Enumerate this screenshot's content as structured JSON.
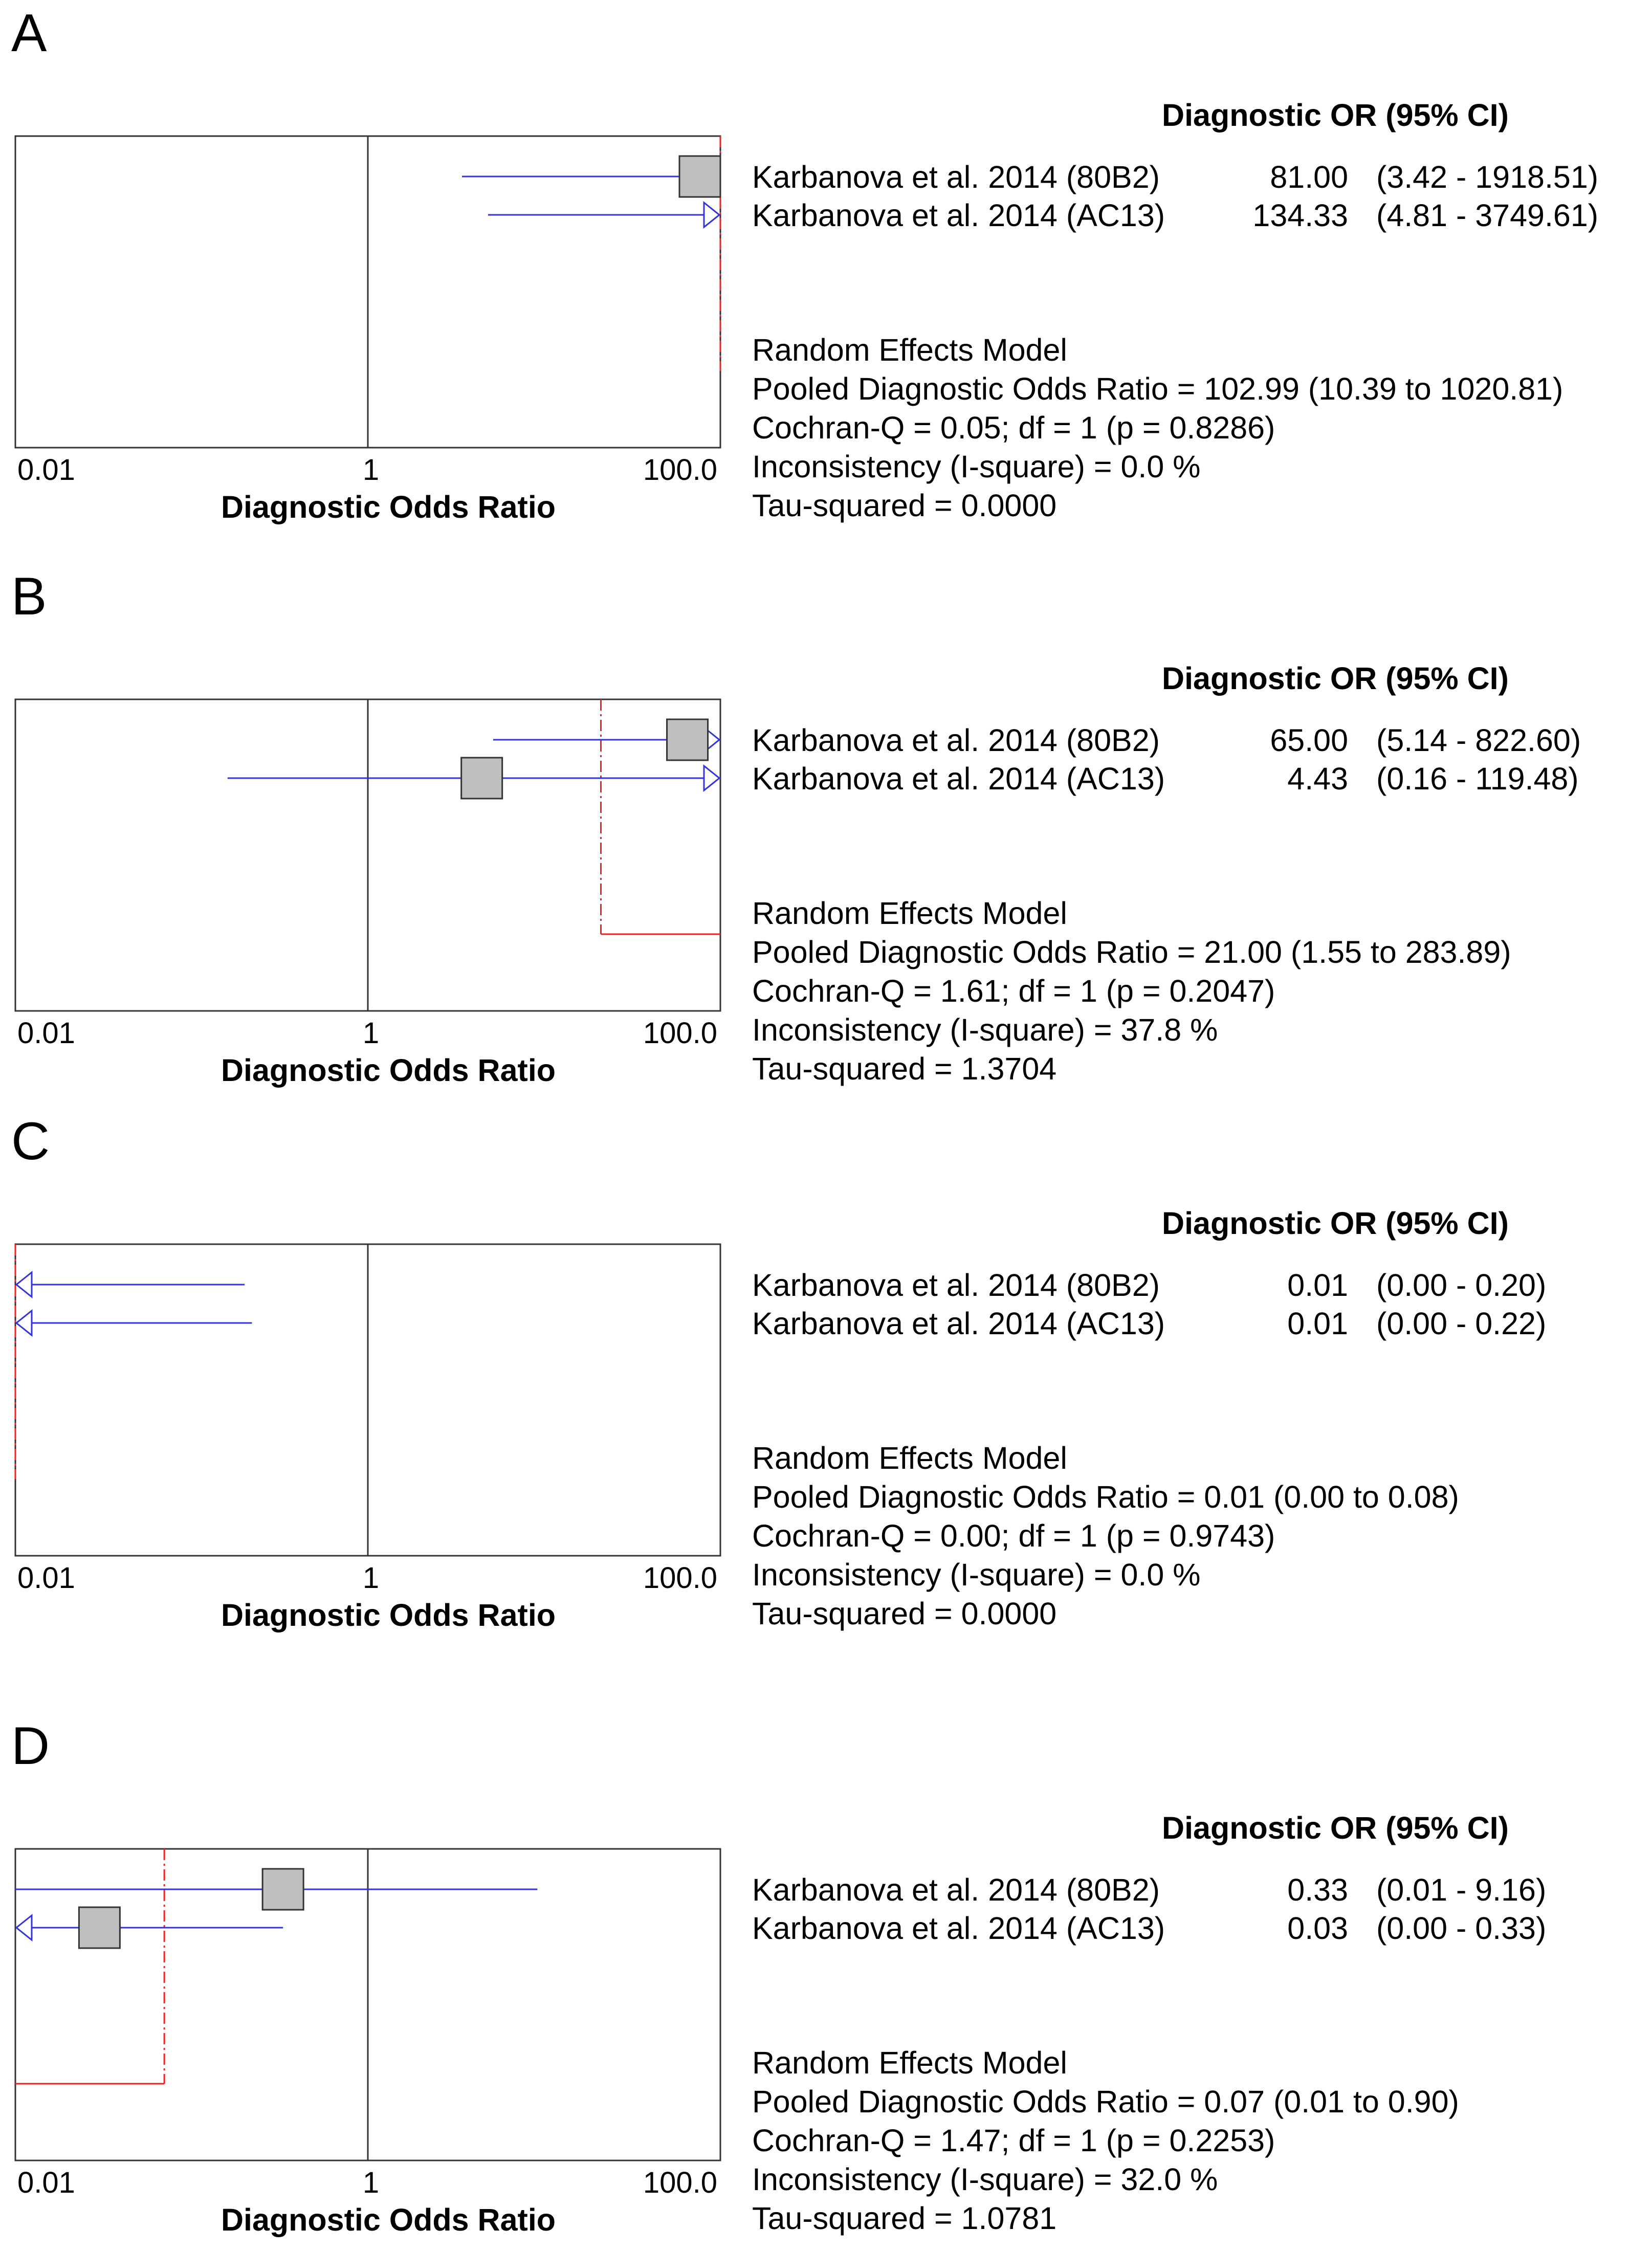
{
  "chart_data": [
    {
      "type": "forest",
      "panel_label": "A",
      "or_header": "Diagnostic OR (95% CI)",
      "xlabel": "Diagnostic Odds Ratio",
      "x_scale": "log",
      "xlim": [
        0.01,
        100.0
      ],
      "tick_labels": [
        "0.01",
        "1",
        "100.0"
      ],
      "tick_values": [
        0.01,
        1,
        100
      ],
      "studies": [
        {
          "name": "Karbanova et al. 2014 (80B2)",
          "or": 81.0,
          "ci_low": 3.42,
          "ci_high": 1918.51,
          "or_text": "81.00",
          "ci_text": "(3.42 - 1918.51)"
        },
        {
          "name": "Karbanova et al. 2014 (AC13)",
          "or": 134.33,
          "ci_low": 4.81,
          "ci_high": 3749.61,
          "or_text": "134.33",
          "ci_text": "(4.81 - 3749.61)"
        }
      ],
      "pooled_or": 102.99,
      "model": {
        "title": "Random Effects Model",
        "pooled": "Pooled Diagnostic Odds Ratio = 102.99 (10.39 to 1020.81)",
        "cochran": "Cochran-Q = 0.05; df =  1 (p = 0.8286)",
        "inconsistency": "Inconsistency (I-square) = 0.0 %",
        "tau": "Tau-squared = 0.0000"
      }
    },
    {
      "type": "forest",
      "panel_label": "B",
      "or_header": "Diagnostic OR (95% CI)",
      "xlabel": "Diagnostic Odds Ratio",
      "x_scale": "log",
      "xlim": [
        0.01,
        100.0
      ],
      "tick_labels": [
        "0.01",
        "1",
        "100.0"
      ],
      "tick_values": [
        0.01,
        1,
        100
      ],
      "studies": [
        {
          "name": "Karbanova et al. 2014 (80B2)",
          "or": 65.0,
          "ci_low": 5.14,
          "ci_high": 822.6,
          "or_text": "65.00",
          "ci_text": "(5.14 - 822.60)"
        },
        {
          "name": "Karbanova et al. 2014 (AC13)",
          "or": 4.43,
          "ci_low": 0.16,
          "ci_high": 119.48,
          "or_text": "4.43",
          "ci_text": "(0.16 - 119.48)"
        }
      ],
      "pooled_or": 21.0,
      "model": {
        "title": "Random Effects Model",
        "pooled": "Pooled Diagnostic Odds Ratio = 21.00 (1.55 to 283.89)",
        "cochran": "Cochran-Q = 1.61; df =  1 (p = 0.2047)",
        "inconsistency": "Inconsistency (I-square) = 37.8 %",
        "tau": "Tau-squared = 1.3704"
      }
    },
    {
      "type": "forest",
      "panel_label": "C",
      "or_header": "Diagnostic OR (95% CI)",
      "xlabel": "Diagnostic Odds Ratio",
      "x_scale": "log",
      "xlim": [
        0.01,
        100.0
      ],
      "tick_labels": [
        "0.01",
        "1",
        "100.0"
      ],
      "tick_values": [
        0.01,
        1,
        100
      ],
      "studies": [
        {
          "name": "Karbanova et al. 2014 (80B2)",
          "or": 0.01,
          "ci_low": 0.0,
          "ci_high": 0.2,
          "or_text": "0.01",
          "ci_text": "(0.00 - 0.20)"
        },
        {
          "name": "Karbanova et al. 2014 (AC13)",
          "or": 0.01,
          "ci_low": 0.0,
          "ci_high": 0.22,
          "or_text": "0.01",
          "ci_text": "(0.00 - 0.22)"
        }
      ],
      "pooled_or": 0.01,
      "model": {
        "title": "Random Effects Model",
        "pooled": "Pooled Diagnostic Odds Ratio = 0.01 (0.00 to 0.08)",
        "cochran": "Cochran-Q = 0.00; df =  1 (p = 0.9743)",
        "inconsistency": "Inconsistency (I-square) = 0.0 %",
        "tau": "Tau-squared = 0.0000"
      }
    },
    {
      "type": "forest",
      "panel_label": "D",
      "or_header": "Diagnostic OR (95% CI)",
      "xlabel": "Diagnostic Odds Ratio",
      "x_scale": "log",
      "xlim": [
        0.01,
        100.0
      ],
      "tick_labels": [
        "0.01",
        "1",
        "100.0"
      ],
      "tick_values": [
        0.01,
        1,
        100
      ],
      "studies": [
        {
          "name": "Karbanova et al. 2014 (80B2)",
          "or": 0.33,
          "ci_low": 0.01,
          "ci_high": 9.16,
          "or_text": "0.33",
          "ci_text": "(0.01 - 9.16)"
        },
        {
          "name": "Karbanova et al. 2014 (AC13)",
          "or": 0.03,
          "ci_low": 0.0,
          "ci_high": 0.33,
          "or_text": "0.03",
          "ci_text": "(0.00 - 0.33)"
        }
      ],
      "pooled_or": 0.07,
      "model": {
        "title": "Random Effects Model",
        "pooled": "Pooled Diagnostic Odds Ratio = 0.07 (0.01 to 0.90)",
        "cochran": "Cochran-Q = 1.47; df =  1 (p = 0.2253)",
        "inconsistency": "Inconsistency (I-square) = 32.0 %",
        "tau": "Tau-squared = 1.0781"
      }
    }
  ],
  "colors": {
    "ci_line": "#3333dd",
    "pooled_line": "#ee2222",
    "box_fill": "#bfbfbf",
    "box_stroke": "#333333",
    "frame": "#333333",
    "text": "#000000"
  }
}
